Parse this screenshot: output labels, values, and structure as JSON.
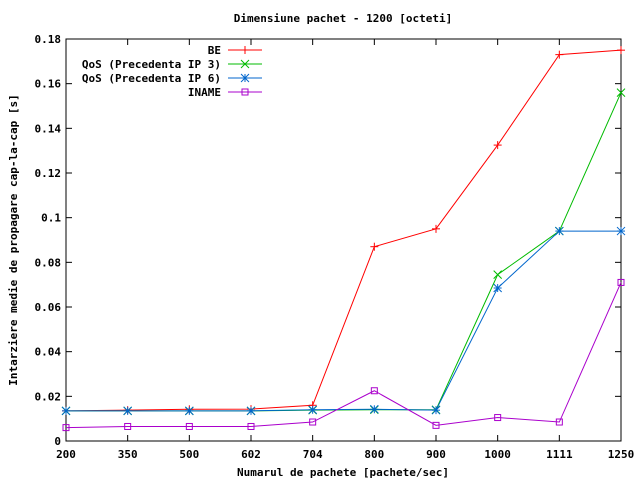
{
  "chart_data": {
    "type": "line",
    "title": "Dimensiune pachet - 1200 [octeti]",
    "xlabel": "Numarul de pachete [pachete/sec]",
    "ylabel": "Intarziere medie de propagare cap-la-cap [s]",
    "categories": [
      "200",
      "350",
      "500",
      "602",
      "704",
      "800",
      "900",
      "1000",
      "1111",
      "1250"
    ],
    "ylim": [
      0,
      0.18
    ],
    "yticks": [
      0,
      0.02,
      0.04,
      0.06,
      0.08,
      0.1,
      0.12,
      0.14,
      0.16,
      0.18
    ],
    "ytick_labels": [
      "0",
      "0.02",
      "0.04",
      "0.06",
      "0.08",
      "0.1",
      "0.12",
      "0.14",
      "0.16",
      "0.18"
    ],
    "grid": false,
    "legend_position": "top-left",
    "series": [
      {
        "name": "BE",
        "color": "#ff0000",
        "marker": "plus",
        "values": [
          0.0135,
          0.0138,
          0.0142,
          0.0143,
          0.016,
          0.087,
          0.095,
          0.1325,
          0.173,
          0.175
        ]
      },
      {
        "name": "QoS (Precedenta IP 3)",
        "color": "#00bb00",
        "marker": "cross",
        "values": [
          0.0135,
          0.0135,
          0.0135,
          0.0135,
          0.0138,
          0.014,
          0.014,
          0.0745,
          0.094,
          0.156
        ]
      },
      {
        "name": "QoS (Precedenta IP 6)",
        "color": "#0066cc",
        "marker": "star",
        "values": [
          0.0135,
          0.0135,
          0.0135,
          0.0135,
          0.014,
          0.0142,
          0.0138,
          0.0685,
          0.094,
          0.094
        ]
      },
      {
        "name": "INAME",
        "color": "#aa00cc",
        "marker": "square",
        "values": [
          0.006,
          0.0065,
          0.0065,
          0.0065,
          0.0085,
          0.0225,
          0.007,
          0.0105,
          0.0085,
          0.071
        ]
      }
    ]
  }
}
